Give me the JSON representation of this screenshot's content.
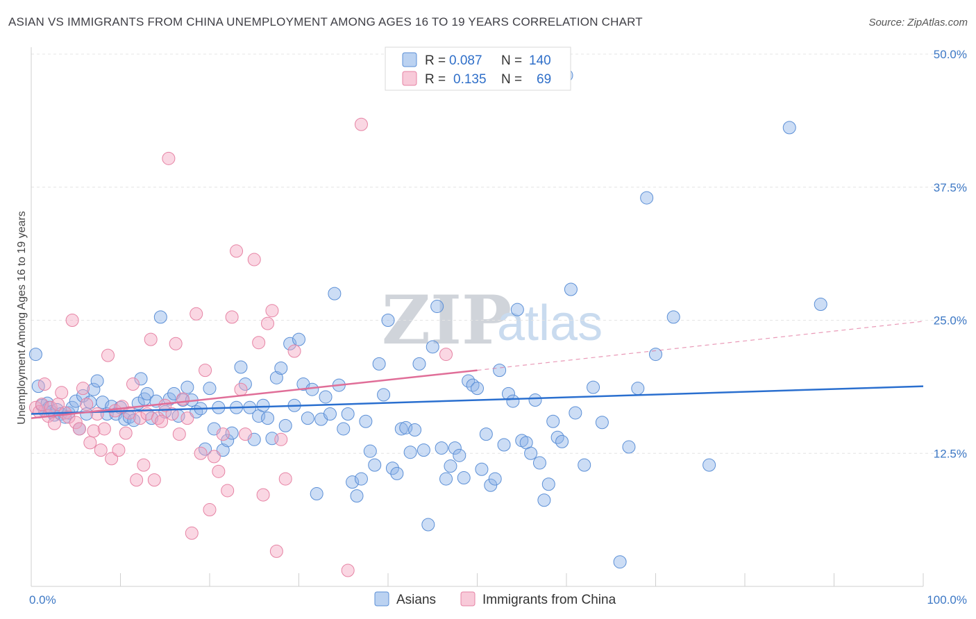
{
  "title": "ASIAN VS IMMIGRANTS FROM CHINA UNEMPLOYMENT AMONG AGES 16 TO 19 YEARS CORRELATION CHART",
  "source": "Source: ZipAtlas.com",
  "watermark": {
    "zip": "ZIP",
    "atlas": "atlas"
  },
  "legend_box": {
    "rows": [
      {
        "r_label": "R =",
        "r_value": "0.087",
        "n_label": "N =",
        "n_value": "140",
        "color": "#8db4e8"
      },
      {
        "r_label": "R =",
        "r_value": "0.135",
        "n_label": "N =",
        "n_value": "69",
        "color": "#f4a6c0"
      }
    ]
  },
  "bottom_legend": [
    {
      "label": "Asians",
      "color": "#8db4e8"
    },
    {
      "label": "Immigrants from China",
      "color": "#f4a6c0"
    }
  ],
  "chart_data": {
    "type": "scatter",
    "ylabel": "Unemployment Among Ages 16 to 19 years",
    "xlim": [
      0,
      100
    ],
    "ylim": [
      0,
      50
    ],
    "x_tick_labels": [
      "0.0%",
      "100.0%"
    ],
    "y_ticks": [
      12.5,
      25.0,
      37.5,
      50.0
    ],
    "y_tick_labels": [
      "12.5%",
      "25.0%",
      "37.5%",
      "50.0%"
    ],
    "grid": "horizontal dashed",
    "series": [
      {
        "name": "Asians",
        "color": "#8db4e8",
        "stroke": "#5b8fd6",
        "trend": {
          "x": [
            0,
            100
          ],
          "y": [
            16.2,
            18.8
          ],
          "style": "solid",
          "color": "#2a6fcf"
        },
        "points": [
          [
            0.5,
            21.8
          ],
          [
            0.8,
            18.8
          ],
          [
            1.2,
            17.0
          ],
          [
            1.5,
            16.5
          ],
          [
            1.8,
            17.2
          ],
          [
            2.0,
            16.8
          ],
          [
            2.3,
            16.4
          ],
          [
            2.6,
            16.1
          ],
          [
            2.9,
            16.6
          ],
          [
            3.3,
            16.2
          ],
          [
            3.8,
            15.9
          ],
          [
            4.2,
            16.3
          ],
          [
            4.6,
            16.8
          ],
          [
            5.0,
            17.4
          ],
          [
            5.4,
            14.8
          ],
          [
            5.8,
            17.9
          ],
          [
            6.2,
            16.2
          ],
          [
            6.6,
            17.3
          ],
          [
            7.0,
            18.5
          ],
          [
            7.4,
            19.3
          ],
          [
            8.0,
            17.3
          ],
          [
            8.5,
            16.2
          ],
          [
            9.0,
            16.9
          ],
          [
            9.5,
            16.2
          ],
          [
            10.0,
            16.8
          ],
          [
            10.5,
            15.7
          ],
          [
            11.0,
            15.9
          ],
          [
            11.5,
            15.6
          ],
          [
            12.0,
            17.2
          ],
          [
            12.3,
            19.5
          ],
          [
            12.7,
            17.6
          ],
          [
            13.0,
            18.1
          ],
          [
            13.5,
            15.8
          ],
          [
            14.0,
            17.4
          ],
          [
            14.5,
            25.3
          ],
          [
            15.0,
            16.4
          ],
          [
            15.5,
            17.6
          ],
          [
            16.0,
            18.1
          ],
          [
            16.5,
            16.0
          ],
          [
            17.0,
            17.5
          ],
          [
            17.5,
            18.7
          ],
          [
            18.0,
            17.5
          ],
          [
            18.5,
            16.4
          ],
          [
            19.0,
            16.7
          ],
          [
            19.5,
            12.9
          ],
          [
            20.0,
            18.6
          ],
          [
            20.5,
            14.8
          ],
          [
            21.0,
            16.8
          ],
          [
            21.5,
            12.8
          ],
          [
            22.0,
            13.7
          ],
          [
            22.5,
            14.4
          ],
          [
            23.0,
            16.8
          ],
          [
            23.5,
            20.6
          ],
          [
            24.0,
            19.0
          ],
          [
            24.5,
            16.8
          ],
          [
            25.0,
            13.8
          ],
          [
            25.5,
            16.0
          ],
          [
            26.0,
            17.0
          ],
          [
            26.5,
            15.8
          ],
          [
            27.0,
            13.9
          ],
          [
            27.5,
            19.6
          ],
          [
            28.0,
            20.5
          ],
          [
            28.5,
            15.1
          ],
          [
            29.0,
            22.8
          ],
          [
            29.5,
            17.0
          ],
          [
            30.0,
            23.2
          ],
          [
            30.5,
            19.0
          ],
          [
            31.0,
            15.8
          ],
          [
            31.5,
            18.5
          ],
          [
            32.0,
            8.7
          ],
          [
            32.5,
            15.7
          ],
          [
            33.0,
            17.8
          ],
          [
            33.5,
            16.2
          ],
          [
            34.0,
            27.5
          ],
          [
            34.5,
            18.9
          ],
          [
            35.0,
            14.8
          ],
          [
            35.5,
            16.2
          ],
          [
            36.0,
            9.8
          ],
          [
            36.5,
            8.5
          ],
          [
            37.0,
            10.1
          ],
          [
            37.5,
            15.5
          ],
          [
            38.0,
            12.7
          ],
          [
            38.5,
            11.4
          ],
          [
            39.0,
            20.9
          ],
          [
            39.5,
            18.0
          ],
          [
            40.0,
            25.0
          ],
          [
            40.5,
            11.1
          ],
          [
            41.0,
            10.6
          ],
          [
            41.5,
            14.8
          ],
          [
            42.0,
            14.9
          ],
          [
            42.5,
            12.6
          ],
          [
            43.0,
            14.7
          ],
          [
            43.5,
            20.9
          ],
          [
            44.0,
            12.8
          ],
          [
            44.5,
            5.8
          ],
          [
            45.0,
            22.5
          ],
          [
            45.5,
            26.3
          ],
          [
            46.0,
            13.0
          ],
          [
            46.5,
            10.1
          ],
          [
            47.0,
            11.3
          ],
          [
            47.5,
            13.0
          ],
          [
            48.0,
            12.3
          ],
          [
            48.5,
            10.2
          ],
          [
            49.0,
            19.3
          ],
          [
            49.5,
            18.9
          ],
          [
            50.0,
            18.6
          ],
          [
            50.5,
            11.0
          ],
          [
            51.0,
            14.3
          ],
          [
            51.5,
            9.5
          ],
          [
            52.0,
            10.1
          ],
          [
            52.5,
            20.3
          ],
          [
            53.0,
            13.3
          ],
          [
            53.5,
            18.1
          ],
          [
            54.0,
            17.4
          ],
          [
            54.5,
            26.0
          ],
          [
            55.0,
            13.7
          ],
          [
            55.5,
            13.5
          ],
          [
            56.0,
            12.5
          ],
          [
            56.5,
            17.5
          ],
          [
            57.0,
            11.6
          ],
          [
            57.5,
            8.1
          ],
          [
            58.0,
            9.6
          ],
          [
            58.5,
            15.5
          ],
          [
            59.0,
            14.0
          ],
          [
            59.5,
            13.6
          ],
          [
            60.0,
            48.0
          ],
          [
            60.5,
            27.9
          ],
          [
            61.0,
            16.3
          ],
          [
            62.0,
            11.4
          ],
          [
            63.0,
            18.7
          ],
          [
            64.0,
            15.4
          ],
          [
            66.0,
            2.3
          ],
          [
            67.0,
            13.1
          ],
          [
            68.0,
            18.6
          ],
          [
            69.0,
            36.5
          ],
          [
            70.0,
            21.8
          ],
          [
            72.0,
            25.3
          ],
          [
            76.0,
            11.4
          ],
          [
            85.0,
            43.1
          ],
          [
            88.5,
            26.5
          ]
        ]
      },
      {
        "name": "Immigrants from China",
        "color": "#f4a6c0",
        "stroke": "#e683a4",
        "trend": {
          "x": [
            0,
            50
          ],
          "y": [
            15.8,
            20.3
          ],
          "style": "solid",
          "color": "#e06e98",
          "extension": {
            "x": [
              50,
              100
            ],
            "y": [
              20.3,
              24.9
            ],
            "style": "dashed"
          }
        },
        "points": [
          [
            0.5,
            16.8
          ],
          [
            0.9,
            16.4
          ],
          [
            1.2,
            17.1
          ],
          [
            1.5,
            19.0
          ],
          [
            1.9,
            16.0
          ],
          [
            2.2,
            16.8
          ],
          [
            2.6,
            15.3
          ],
          [
            3.0,
            17.1
          ],
          [
            3.4,
            18.2
          ],
          [
            3.8,
            16.3
          ],
          [
            4.2,
            15.9
          ],
          [
            4.6,
            25.0
          ],
          [
            5.0,
            15.4
          ],
          [
            5.4,
            14.8
          ],
          [
            5.8,
            18.6
          ],
          [
            6.2,
            17.1
          ],
          [
            6.6,
            13.5
          ],
          [
            7.0,
            14.6
          ],
          [
            7.4,
            16.2
          ],
          [
            7.8,
            12.8
          ],
          [
            8.2,
            14.8
          ],
          [
            8.6,
            21.7
          ],
          [
            9.0,
            12.0
          ],
          [
            9.4,
            16.5
          ],
          [
            9.8,
            12.8
          ],
          [
            10.2,
            16.9
          ],
          [
            10.6,
            14.4
          ],
          [
            11.0,
            16.3
          ],
          [
            11.4,
            19.0
          ],
          [
            11.8,
            10.0
          ],
          [
            12.2,
            15.8
          ],
          [
            12.6,
            11.4
          ],
          [
            13.0,
            16.2
          ],
          [
            13.4,
            23.2
          ],
          [
            13.8,
            10.0
          ],
          [
            14.2,
            15.8
          ],
          [
            14.6,
            15.5
          ],
          [
            15.0,
            17.0
          ],
          [
            15.4,
            40.2
          ],
          [
            15.8,
            16.2
          ],
          [
            16.2,
            22.8
          ],
          [
            16.6,
            14.3
          ],
          [
            17.0,
            17.6
          ],
          [
            17.5,
            15.8
          ],
          [
            18.0,
            5.0
          ],
          [
            18.5,
            25.6
          ],
          [
            19.0,
            12.5
          ],
          [
            19.5,
            20.3
          ],
          [
            20.0,
            7.2
          ],
          [
            20.5,
            12.2
          ],
          [
            21.0,
            10.8
          ],
          [
            21.5,
            14.3
          ],
          [
            22.0,
            9.0
          ],
          [
            22.5,
            25.3
          ],
          [
            23.0,
            31.5
          ],
          [
            23.5,
            18.5
          ],
          [
            24.0,
            14.3
          ],
          [
            25.0,
            30.7
          ],
          [
            25.5,
            22.9
          ],
          [
            26.0,
            8.6
          ],
          [
            26.5,
            24.7
          ],
          [
            27.0,
            25.9
          ],
          [
            27.5,
            3.3
          ],
          [
            28.0,
            13.8
          ],
          [
            28.5,
            10.1
          ],
          [
            29.5,
            22.1
          ],
          [
            35.5,
            1.5
          ],
          [
            37.0,
            43.4
          ],
          [
            46.5,
            21.8
          ]
        ]
      }
    ]
  }
}
